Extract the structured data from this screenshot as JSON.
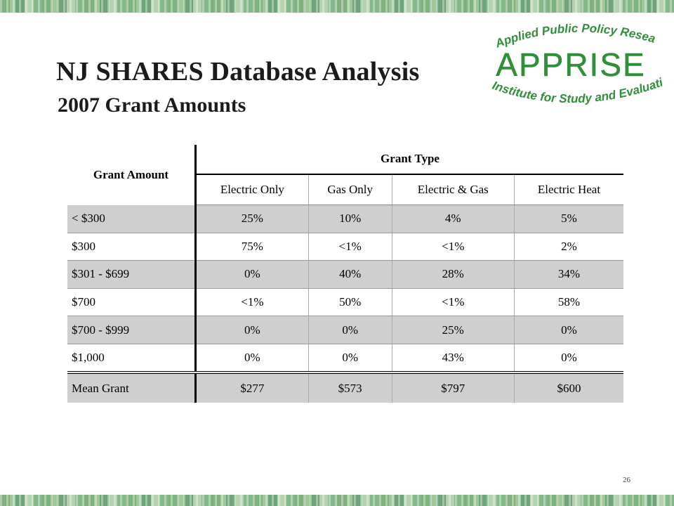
{
  "slide": {
    "title": "NJ SHARES Database Analysis",
    "subtitle": "2007 Grant Amounts",
    "page_number": "26"
  },
  "logo": {
    "line1": "Applied Public Policy Research",
    "name": "APPRISE",
    "line2": "Institute for Study and Evaluation",
    "color": "#2f8f3a"
  },
  "table": {
    "row_header": "Grant Amount",
    "group_header": "Grant Type",
    "columns": [
      "Electric Only",
      "Gas Only",
      "Electric & Gas",
      "Electric Heat"
    ],
    "rows": [
      {
        "label": "< $300",
        "values": [
          "25%",
          "10%",
          "4%",
          "5%"
        ]
      },
      {
        "label": "$300",
        "values": [
          "75%",
          "<1%",
          "<1%",
          "2%"
        ]
      },
      {
        "label": "$301 - $699",
        "values": [
          "0%",
          "40%",
          "28%",
          "34%"
        ]
      },
      {
        "label": "$700",
        "values": [
          "<1%",
          "50%",
          "<1%",
          "58%"
        ]
      },
      {
        "label": "$700 - $999",
        "values": [
          "0%",
          "0%",
          "25%",
          "0%"
        ]
      },
      {
        "label": "$1,000",
        "values": [
          "0%",
          "0%",
          "43%",
          "0%"
        ]
      }
    ],
    "summary": {
      "label": "Mean Grant",
      "values": [
        "$277",
        "$573",
        "$797",
        "$600"
      ]
    }
  }
}
